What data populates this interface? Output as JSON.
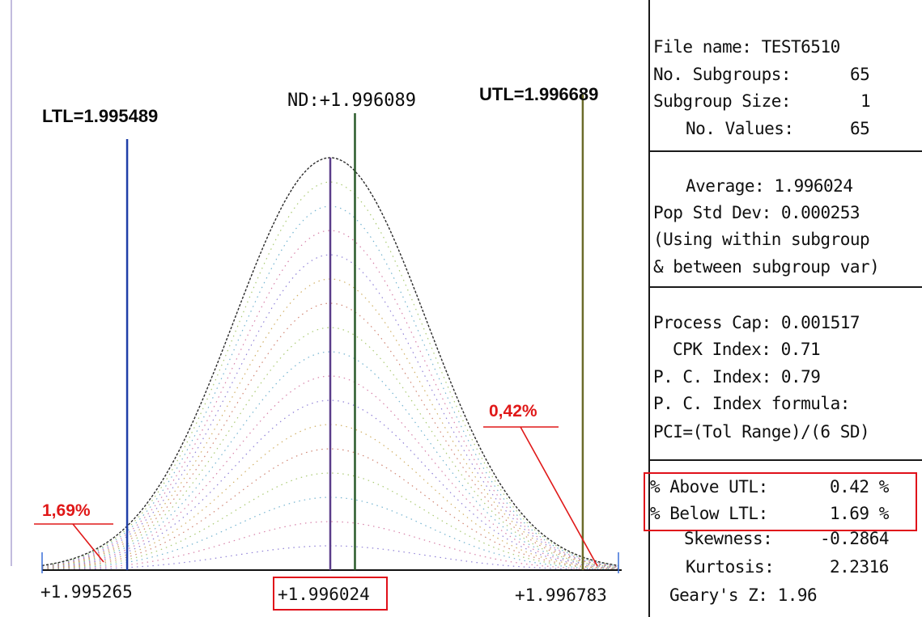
{
  "chart_data": {
    "type": "area",
    "description_type": "normal distribution curve",
    "x_ticks": [
      "+1.995265",
      "+1.996024",
      "+1.996783"
    ],
    "xlim": [
      1.995265,
      1.996783
    ],
    "mean": 1.996024,
    "std_dev": 0.000253,
    "ltl": 1.995489,
    "utl": 1.996689,
    "nd": 1.996089,
    "ltl_label": "LTL=1.995489",
    "utl_label": "UTL=1.996689",
    "nd_label": "ND:+1.996089",
    "pct_below_ltl_label": "1,69%",
    "pct_above_utl_label": "0,42%",
    "highlighted_tick": "+1.996024"
  },
  "panel": {
    "file_info": {
      "file_name_label": "File name:",
      "file_name": "TEST6510",
      "subgroups_label": "No. Subgroups:",
      "subgroups": "65",
      "subgroup_size_label": "Subgroup Size:",
      "subgroup_size": "1",
      "values_label": "No. Values:",
      "values": "65"
    },
    "stats": {
      "average_label": "Average:",
      "average": "1.996024",
      "std_label": "Pop Std Dev:",
      "std": "0.000253",
      "note_line1": "(Using within subgroup",
      "note_line2": "& between subgroup var)"
    },
    "capability": {
      "process_cap_label": "Process Cap:",
      "process_cap": "0.001517",
      "cpk_label": "CPK Index:",
      "cpk": "0.71",
      "pci_label": "P. C. Index:",
      "pci": "0.79",
      "formula_label": "P. C. Index formula:",
      "formula": "PCI=(Tol Range)/(6 SD)"
    },
    "distribution": {
      "above_utl_label": "% Above UTL:",
      "above_utl": "0.42 %",
      "below_ltl_label": "% Below LTL:",
      "below_ltl": "1.69 %",
      "skewness_label": "Skewness:",
      "skewness": "-0.2864",
      "kurtosis_label": "Kurtosis:",
      "kurtosis": "2.2316",
      "geary_label": "Geary's Z:",
      "geary": "1.96"
    }
  }
}
